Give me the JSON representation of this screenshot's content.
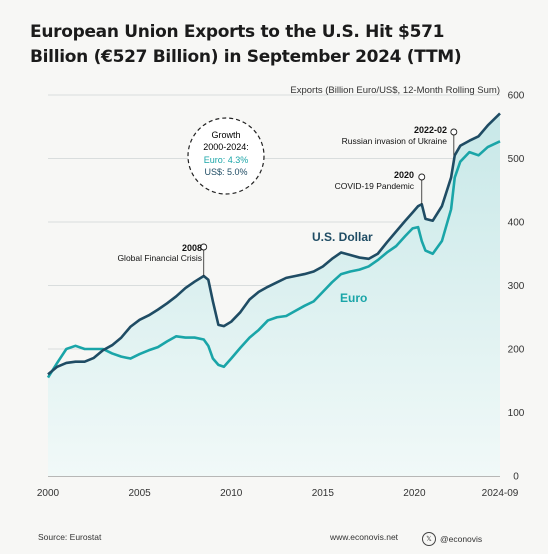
{
  "title": "European Union Exports to the U.S. Hit $571 Billion (€527 Billion) in September 2024 (TTM)",
  "footer": {
    "source": "Source: Eurostat",
    "website": "www.econovis.net",
    "handle": "@econovis",
    "handle_icon": "x-logo-icon"
  },
  "colors": {
    "usd": "#1f4c64",
    "eur": "#1aa5a8",
    "area": "#d6eeee",
    "grid": "#cfd4d4"
  },
  "chart_data": {
    "type": "line",
    "axis_note": "Exports (Billion Euro/US$, 12-Month Rolling Sum)",
    "x_ticks": [
      "2000",
      "2005",
      "2010",
      "2015",
      "2020",
      "2024-09"
    ],
    "x_tick_values": [
      2000,
      2005,
      2010,
      2015,
      2020,
      2024.67
    ],
    "y_ticks": [
      "0",
      "100",
      "200",
      "300",
      "400",
      "500",
      "600"
    ],
    "y_tick_values": [
      0,
      100,
      200,
      300,
      400,
      500,
      600
    ],
    "xlim": [
      2000,
      2024.67
    ],
    "ylim": [
      0,
      600
    ],
    "grid": "horizontal",
    "series": [
      {
        "name": "U.S. Dollar",
        "x": [
          2000,
          2000.5,
          2001,
          2001.5,
          2002,
          2002.5,
          2003,
          2003.5,
          2004,
          2004.5,
          2005,
          2005.5,
          2006,
          2006.5,
          2007,
          2007.5,
          2008,
          2008.5,
          2008.75,
          2009,
          2009.3,
          2009.6,
          2010,
          2010.5,
          2011,
          2011.5,
          2012,
          2012.5,
          2013,
          2013.5,
          2014,
          2014.5,
          2015,
          2015.5,
          2016,
          2016.5,
          2017,
          2017.5,
          2018,
          2018.5,
          2019,
          2019.5,
          2019.9,
          2020.2,
          2020.4,
          2020.6,
          2021,
          2021.5,
          2022,
          2022.2,
          2022.5,
          2023,
          2023.5,
          2024,
          2024.67
        ],
        "y": [
          160,
          172,
          178,
          180,
          180,
          186,
          198,
          206,
          218,
          235,
          246,
          253,
          262,
          272,
          283,
          296,
          306,
          315,
          309,
          275,
          238,
          236,
          243,
          258,
          278,
          290,
          298,
          305,
          312,
          315,
          318,
          322,
          330,
          342,
          352,
          348,
          344,
          342,
          350,
          368,
          385,
          402,
          415,
          425,
          428,
          405,
          402,
          425,
          470,
          505,
          520,
          528,
          535,
          552,
          571
        ]
      },
      {
        "name": "Euro",
        "x": [
          2000,
          2000.5,
          2001,
          2001.5,
          2002,
          2002.5,
          2003,
          2003.5,
          2004,
          2004.5,
          2005,
          2005.5,
          2006,
          2006.5,
          2007,
          2007.5,
          2008,
          2008.5,
          2008.75,
          2009,
          2009.3,
          2009.6,
          2010,
          2010.5,
          2011,
          2011.5,
          2012,
          2012.5,
          2013,
          2013.5,
          2014,
          2014.5,
          2015,
          2015.5,
          2016,
          2016.5,
          2017,
          2017.5,
          2018,
          2018.5,
          2019,
          2019.5,
          2019.9,
          2020.2,
          2020.4,
          2020.6,
          2021,
          2021.5,
          2022,
          2022.2,
          2022.5,
          2023,
          2023.5,
          2024,
          2024.67
        ],
        "y": [
          155,
          178,
          200,
          205,
          200,
          200,
          200,
          193,
          188,
          185,
          192,
          198,
          203,
          212,
          220,
          218,
          218,
          215,
          205,
          185,
          175,
          172,
          185,
          202,
          218,
          230,
          245,
          250,
          252,
          260,
          268,
          275,
          290,
          305,
          318,
          322,
          325,
          330,
          340,
          352,
          362,
          378,
          390,
          392,
          370,
          355,
          350,
          370,
          420,
          470,
          495,
          510,
          505,
          518,
          527
        ]
      }
    ],
    "series_labels": [
      {
        "series": "U.S. Dollar",
        "text": "U.S. Dollar"
      },
      {
        "series": "Euro",
        "text": "Euro"
      }
    ],
    "annotations": [
      {
        "year_label": "2008",
        "text": "Global Financial Crisis",
        "x": 2008.5,
        "y": 315
      },
      {
        "year_label": "2020",
        "text": "COVID-19 Pandemic",
        "x": 2020.4,
        "y": 428
      },
      {
        "year_label": "2022-02",
        "text": "Russian invasion of Ukraine",
        "x": 2022.15,
        "y": 505
      }
    ],
    "callout": {
      "title": "Growth 2000-2024:",
      "title_lines": [
        "Growth",
        "2000-2024:"
      ],
      "eur": "Euro: 4.3%",
      "usd": "US$: 5.0%"
    }
  }
}
